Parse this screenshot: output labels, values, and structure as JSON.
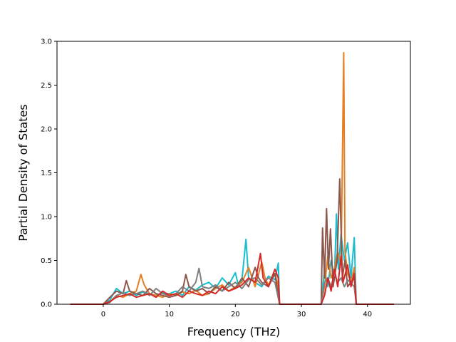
{
  "chart_data": {
    "type": "line",
    "title": "",
    "xlabel": "Frequency (THz)",
    "ylabel": "Partial Density of States",
    "xlim": [
      -7,
      46.5
    ],
    "ylim": [
      0.0,
      3.0
    ],
    "x_ticks": [
      0,
      10,
      20,
      30,
      40
    ],
    "x_tick_labels": [
      "0",
      "10",
      "20",
      "30",
      "40"
    ],
    "y_ticks": [
      0.0,
      0.5,
      1.0,
      1.5,
      2.0,
      2.5,
      3.0
    ],
    "y_tick_labels": [
      "0.0",
      "0.5",
      "1.0",
      "1.5",
      "2.0",
      "2.5",
      "3.0"
    ],
    "grid": false,
    "legend": "none",
    "series": [
      {
        "color": "#17becf",
        "points": [
          [
            -5,
            0
          ],
          [
            0,
            0
          ],
          [
            1,
            0.05
          ],
          [
            2,
            0.18
          ],
          [
            3,
            0.12
          ],
          [
            4,
            0.15
          ],
          [
            5,
            0.1
          ],
          [
            6,
            0.14
          ],
          [
            7,
            0.12
          ],
          [
            8,
            0.1
          ],
          [
            9,
            0.13
          ],
          [
            10,
            0.12
          ],
          [
            11,
            0.15
          ],
          [
            12,
            0.1
          ],
          [
            13,
            0.2
          ],
          [
            14,
            0.16
          ],
          [
            15,
            0.22
          ],
          [
            16,
            0.25
          ],
          [
            17,
            0.18
          ],
          [
            18,
            0.3
          ],
          [
            19,
            0.22
          ],
          [
            20,
            0.36
          ],
          [
            20.5,
            0.2
          ],
          [
            21,
            0.28
          ],
          [
            21.6,
            0.74
          ],
          [
            22,
            0.3
          ],
          [
            23,
            0.25
          ],
          [
            24,
            0.2
          ],
          [
            25,
            0.32
          ],
          [
            26,
            0.28
          ],
          [
            26.5,
            0.47
          ],
          [
            26.7,
            0
          ],
          [
            33,
            0
          ],
          [
            33.5,
            0.4
          ],
          [
            34,
            0.2
          ],
          [
            34.5,
            0.5
          ],
          [
            35,
            0.3
          ],
          [
            35.3,
            1.03
          ],
          [
            35.6,
            0.4
          ],
          [
            36,
            0.8
          ],
          [
            36.5,
            0.5
          ],
          [
            37,
            0.7
          ],
          [
            37.5,
            0.3
          ],
          [
            38,
            0.76
          ],
          [
            38.3,
            0
          ],
          [
            44,
            0
          ]
        ]
      },
      {
        "color": "#e67e22",
        "points": [
          [
            -5,
            0
          ],
          [
            0,
            0
          ],
          [
            1,
            0.03
          ],
          [
            2,
            0.1
          ],
          [
            3,
            0.08
          ],
          [
            4,
            0.12
          ],
          [
            5,
            0.15
          ],
          [
            5.7,
            0.34
          ],
          [
            6.2,
            0.22
          ],
          [
            7,
            0.12
          ],
          [
            8,
            0.1
          ],
          [
            9,
            0.08
          ],
          [
            10,
            0.12
          ],
          [
            11,
            0.1
          ],
          [
            12,
            0.14
          ],
          [
            13,
            0.12
          ],
          [
            14,
            0.16
          ],
          [
            15,
            0.1
          ],
          [
            16,
            0.12
          ],
          [
            17,
            0.18
          ],
          [
            18,
            0.22
          ],
          [
            19,
            0.15
          ],
          [
            20,
            0.2
          ],
          [
            21,
            0.25
          ],
          [
            22,
            0.42
          ],
          [
            23,
            0.2
          ],
          [
            24,
            0.48
          ],
          [
            24.5,
            0.3
          ],
          [
            25,
            0.22
          ],
          [
            26,
            0.35
          ],
          [
            26.5,
            0.2
          ],
          [
            26.7,
            0
          ],
          [
            33,
            0
          ],
          [
            33.5,
            0.2
          ],
          [
            34,
            0.55
          ],
          [
            34.5,
            0.3
          ],
          [
            35,
            0.4
          ],
          [
            35.5,
            0.6
          ],
          [
            36,
            0.45
          ],
          [
            36.4,
            2.87
          ],
          [
            36.6,
            0.6
          ],
          [
            37,
            0.35
          ],
          [
            37.5,
            0.25
          ],
          [
            38,
            0.42
          ],
          [
            38.3,
            0
          ],
          [
            44,
            0
          ]
        ]
      },
      {
        "color": "#8c564b",
        "points": [
          [
            -5,
            0
          ],
          [
            0,
            0
          ],
          [
            1,
            0.08
          ],
          [
            2,
            0.15
          ],
          [
            3,
            0.12
          ],
          [
            3.5,
            0.27
          ],
          [
            4,
            0.15
          ],
          [
            5,
            0.12
          ],
          [
            6,
            0.1
          ],
          [
            7,
            0.18
          ],
          [
            8,
            0.12
          ],
          [
            9,
            0.1
          ],
          [
            10,
            0.08
          ],
          [
            11,
            0.1
          ],
          [
            12,
            0.15
          ],
          [
            12.5,
            0.34
          ],
          [
            13,
            0.2
          ],
          [
            14,
            0.15
          ],
          [
            15,
            0.18
          ],
          [
            16,
            0.12
          ],
          [
            17,
            0.2
          ],
          [
            18,
            0.15
          ],
          [
            19,
            0.25
          ],
          [
            20,
            0.18
          ],
          [
            21,
            0.3
          ],
          [
            22,
            0.2
          ],
          [
            23,
            0.42
          ],
          [
            23.5,
            0.3
          ],
          [
            24,
            0.25
          ],
          [
            25,
            0.2
          ],
          [
            26,
            0.35
          ],
          [
            26.7,
            0
          ],
          [
            33,
            0
          ],
          [
            33.2,
            0.87
          ],
          [
            33.5,
            0.3
          ],
          [
            33.8,
            1.09
          ],
          [
            34.1,
            0.4
          ],
          [
            34.4,
            0.86
          ],
          [
            34.8,
            0.2
          ],
          [
            35.4,
            0.5
          ],
          [
            35.8,
            1.43
          ],
          [
            36.2,
            0.3
          ],
          [
            36.6,
            0.5
          ],
          [
            37,
            0.2
          ],
          [
            38,
            0.3
          ],
          [
            38.3,
            0
          ],
          [
            44,
            0
          ]
        ]
      },
      {
        "color": "#7f7f7f",
        "points": [
          [
            -5,
            0
          ],
          [
            0,
            0
          ],
          [
            1,
            0.02
          ],
          [
            2,
            0.1
          ],
          [
            3,
            0.13
          ],
          [
            4,
            0.1
          ],
          [
            5,
            0.12
          ],
          [
            6,
            0.15
          ],
          [
            7,
            0.1
          ],
          [
            8,
            0.18
          ],
          [
            9,
            0.12
          ],
          [
            10,
            0.1
          ],
          [
            11,
            0.12
          ],
          [
            12,
            0.2
          ],
          [
            13,
            0.15
          ],
          [
            14,
            0.25
          ],
          [
            14.5,
            0.41
          ],
          [
            15,
            0.2
          ],
          [
            16,
            0.18
          ],
          [
            17,
            0.22
          ],
          [
            18,
            0.15
          ],
          [
            19,
            0.2
          ],
          [
            20,
            0.25
          ],
          [
            21,
            0.18
          ],
          [
            22,
            0.28
          ],
          [
            23,
            0.3
          ],
          [
            24,
            0.22
          ],
          [
            25,
            0.3
          ],
          [
            26,
            0.25
          ],
          [
            26.7,
            0
          ],
          [
            33,
            0
          ],
          [
            33.5,
            0.25
          ],
          [
            34,
            0.3
          ],
          [
            34.5,
            0.2
          ],
          [
            35,
            0.35
          ],
          [
            35.5,
            0.25
          ],
          [
            36,
            0.3
          ],
          [
            36.5,
            0.2
          ],
          [
            37,
            0.28
          ],
          [
            38,
            0.2
          ],
          [
            38.3,
            0
          ],
          [
            44,
            0
          ]
        ]
      },
      {
        "color": "#d62728",
        "points": [
          [
            -5,
            0
          ],
          [
            0,
            0
          ],
          [
            1,
            0.03
          ],
          [
            2,
            0.08
          ],
          [
            3,
            0.1
          ],
          [
            4,
            0.12
          ],
          [
            5,
            0.08
          ],
          [
            6,
            0.1
          ],
          [
            7,
            0.12
          ],
          [
            8,
            0.08
          ],
          [
            9,
            0.15
          ],
          [
            10,
            0.1
          ],
          [
            11,
            0.12
          ],
          [
            12,
            0.08
          ],
          [
            13,
            0.15
          ],
          [
            14,
            0.12
          ],
          [
            15,
            0.1
          ],
          [
            16,
            0.15
          ],
          [
            17,
            0.12
          ],
          [
            18,
            0.2
          ],
          [
            19,
            0.15
          ],
          [
            20,
            0.18
          ],
          [
            21,
            0.22
          ],
          [
            22,
            0.3
          ],
          [
            23,
            0.25
          ],
          [
            23.8,
            0.58
          ],
          [
            24.2,
            0.3
          ],
          [
            25,
            0.2
          ],
          [
            26,
            0.4
          ],
          [
            26.5,
            0.3
          ],
          [
            26.7,
            0
          ],
          [
            33,
            0
          ],
          [
            33.5,
            0.1
          ],
          [
            34,
            0.3
          ],
          [
            34.5,
            0.15
          ],
          [
            35,
            0.4
          ],
          [
            35.5,
            0.2
          ],
          [
            36,
            0.55
          ],
          [
            36.3,
            0.25
          ],
          [
            37,
            0.45
          ],
          [
            37.5,
            0.2
          ],
          [
            38,
            0.35
          ],
          [
            38.3,
            0
          ],
          [
            44,
            0
          ]
        ]
      }
    ]
  }
}
